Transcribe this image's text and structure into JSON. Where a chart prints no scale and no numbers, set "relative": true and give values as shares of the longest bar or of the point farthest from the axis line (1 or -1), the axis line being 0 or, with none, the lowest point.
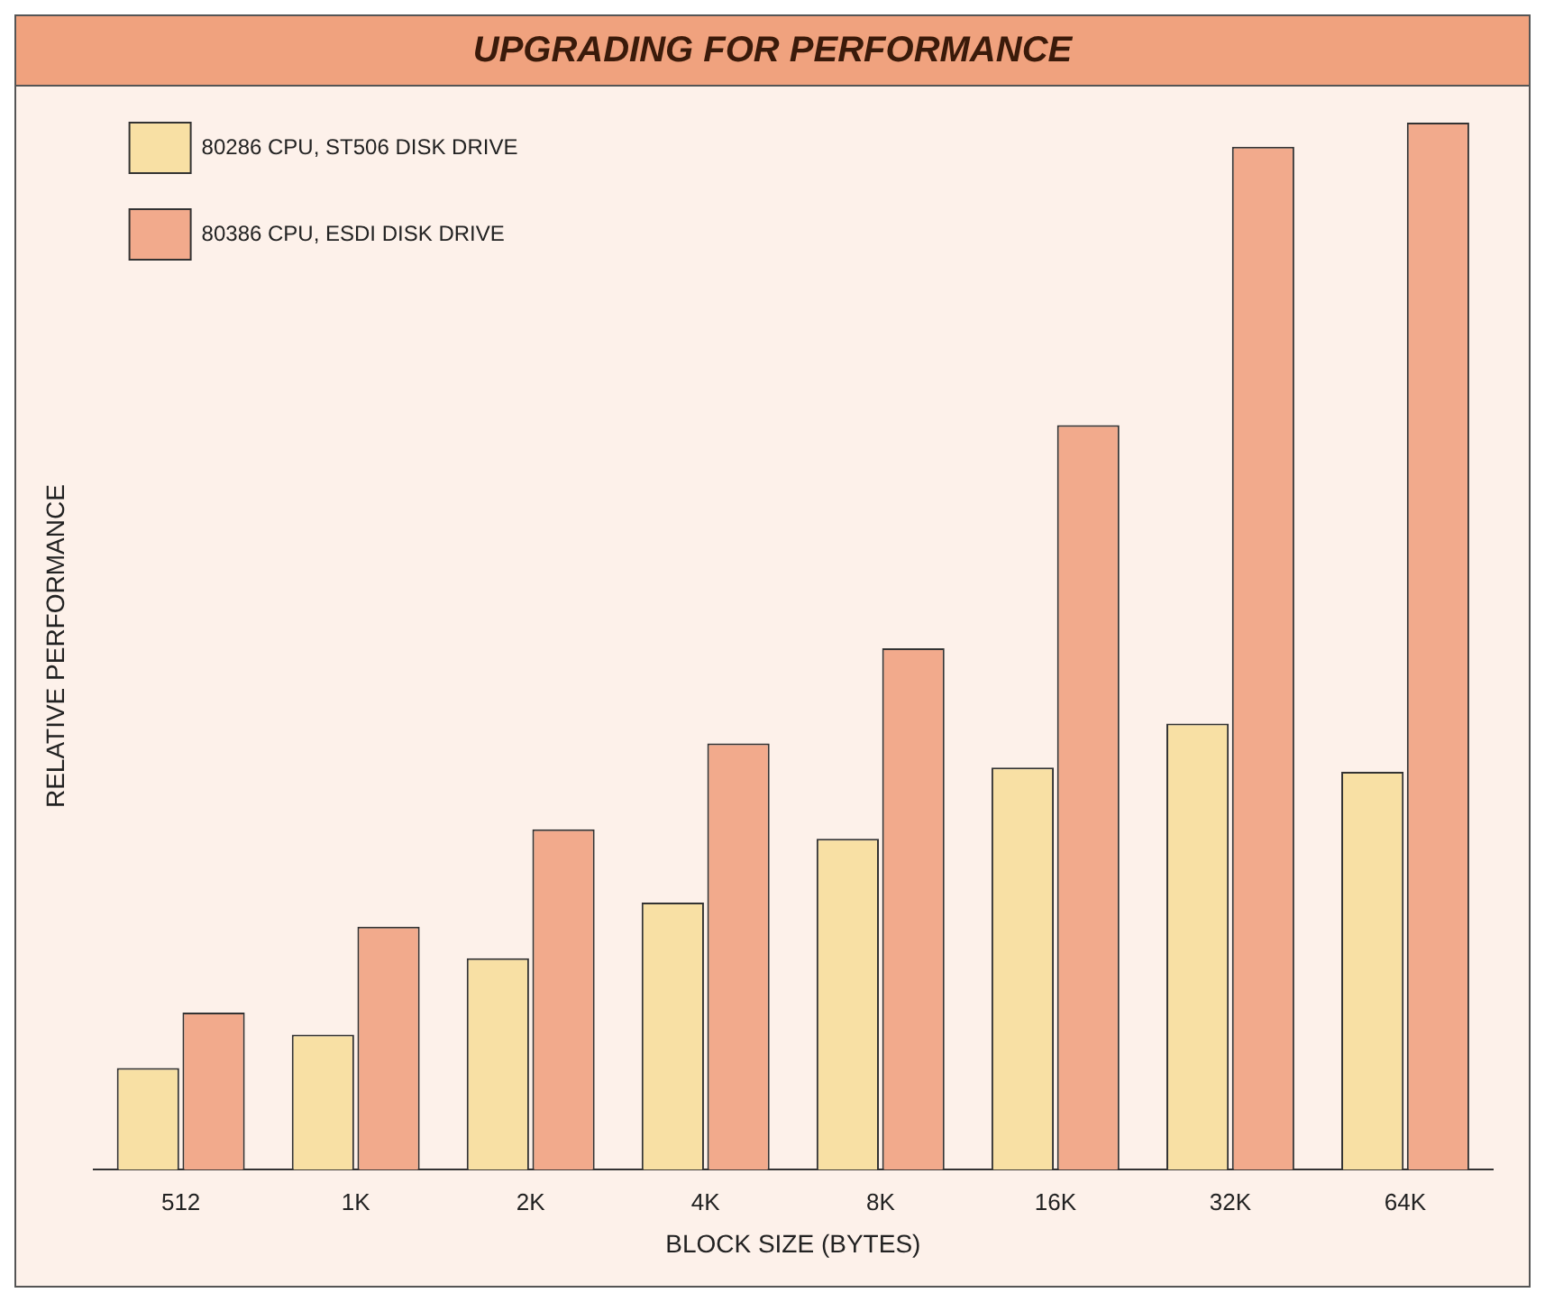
{
  "chart_data": {
    "type": "bar",
    "title": "UPGRADING FOR PERFORMANCE",
    "xlabel": "BLOCK SIZE (BYTES)",
    "ylabel": "RELATIVE PERFORMANCE",
    "relative": true,
    "legend": "top left",
    "categories": [
      "512",
      "1K",
      "2K",
      "4K",
      "8K",
      "16K",
      "32K",
      "64K"
    ],
    "series": [
      {
        "name": "80286 CPU, ST506 DISK DRIVE",
        "color": "#f8e0a4",
        "values": [
          0.097,
          0.129,
          0.202,
          0.255,
          0.316,
          0.384,
          0.426,
          0.38
        ]
      },
      {
        "name": "80386 CPU, ESDI DISK DRIVE",
        "color": "#f2aa8c",
        "values": [
          0.15,
          0.232,
          0.325,
          0.407,
          0.498,
          0.711,
          0.977,
          1
        ]
      }
    ]
  }
}
